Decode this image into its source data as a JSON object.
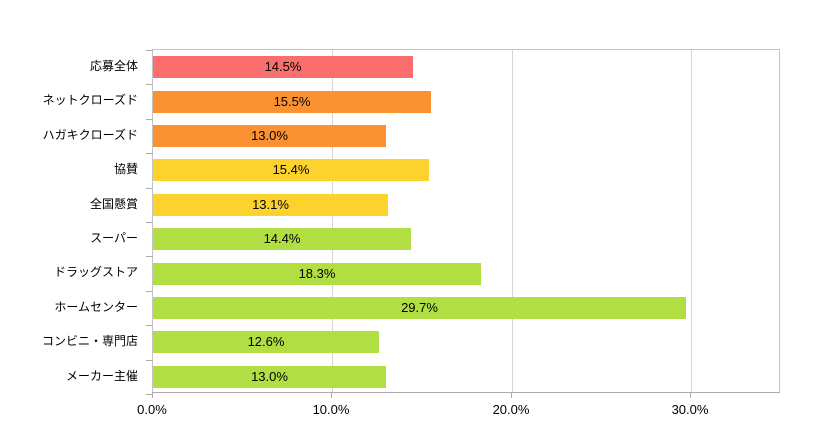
{
  "chart_data": {
    "type": "bar",
    "orientation": "horizontal",
    "title": "",
    "xlabel": "",
    "ylabel": "",
    "grid": true,
    "legend": false,
    "xlim": [
      0,
      35
    ],
    "categories": [
      "応募全体",
      "ネットクローズド",
      "ハガキクローズド",
      "協賛",
      "全国懸賞",
      "スーパー",
      "ドラッグストア",
      "ホームセンター",
      "コンビニ・専門店",
      "メーカー主催"
    ],
    "values": [
      14.5,
      15.5,
      13.0,
      15.4,
      13.1,
      14.4,
      18.3,
      29.7,
      12.6,
      13.0
    ],
    "value_labels": [
      "14.5%",
      "15.5%",
      "13.0%",
      "15.4%",
      "13.1%",
      "14.4%",
      "18.3%",
      "29.7%",
      "12.6%",
      "13.0%"
    ],
    "bar_colors": [
      "#fb6e6e",
      "#fa9232",
      "#fa9232",
      "#fcd22f",
      "#fcd22f",
      "#b1de42",
      "#b1de42",
      "#b1de42",
      "#b1de42",
      "#b1de42"
    ],
    "x_ticks": [
      "0.0%",
      "10.0%",
      "20.0%",
      "30.0%"
    ],
    "x_tick_values": [
      0,
      10,
      20,
      30
    ]
  },
  "style_colors": {
    "gridline": "#d4d4d4",
    "plot_border": "#c4c4c4",
    "axis_line": "#ababab",
    "label_text": "#000000",
    "background": "#ffffff"
  }
}
